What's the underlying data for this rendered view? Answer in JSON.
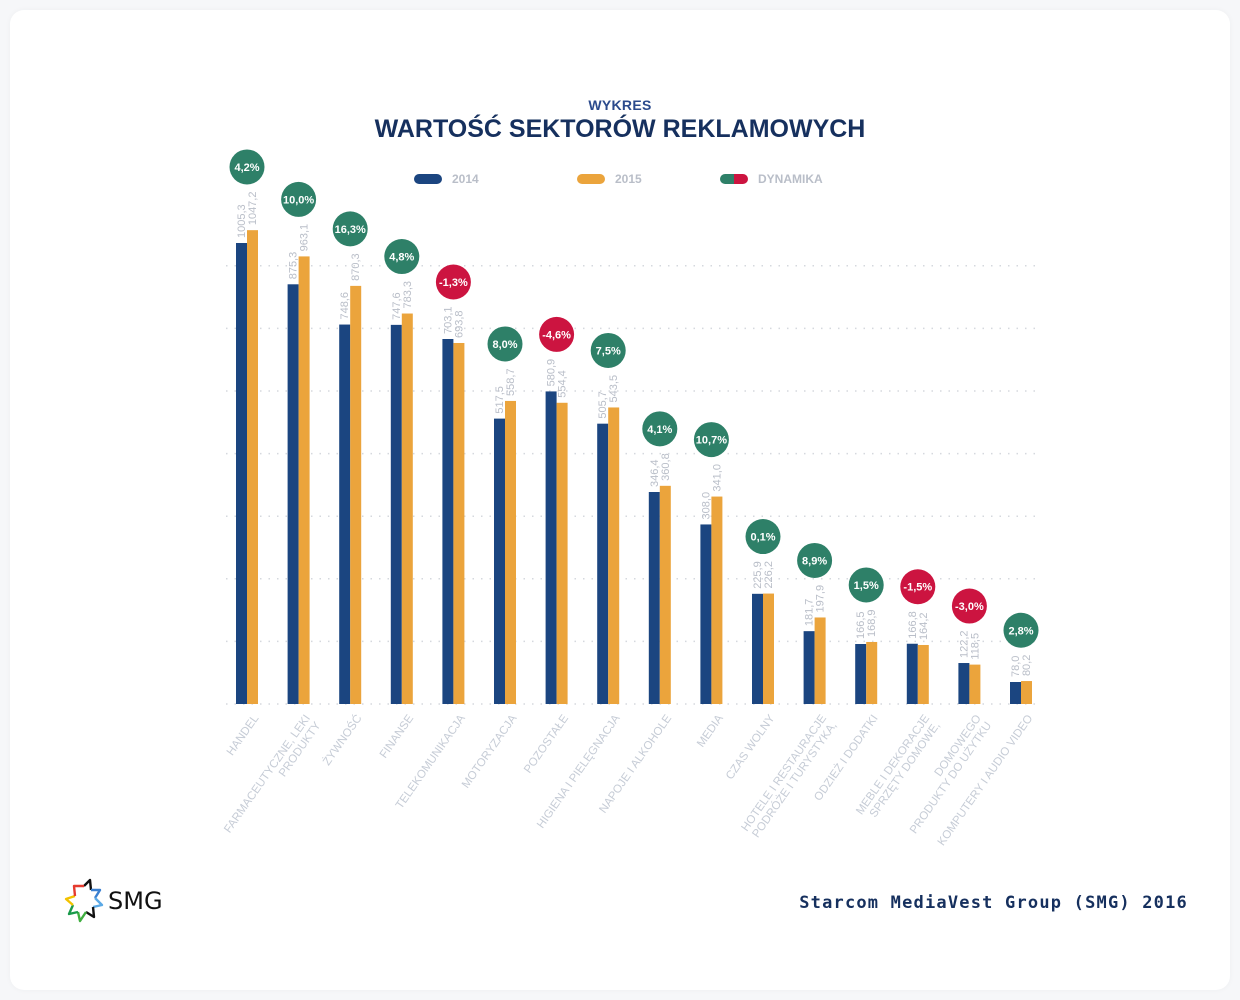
{
  "header": {
    "subtitle": "WYKRES",
    "title": "WARTOŚĆ SEKTORÓW REKLAMOWYCH"
  },
  "legend": [
    {
      "label": "2014",
      "color": "#1b4580"
    },
    {
      "label": "2015",
      "color": "#eba43c"
    },
    {
      "label": "DYNAMIKA",
      "colors": [
        "#2e8068",
        "#cc1440"
      ]
    }
  ],
  "footer": {
    "source": "Starcom MediaVest Group (SMG) 2016",
    "logo_text": "SMG"
  },
  "colors": {
    "series2014": "#1b4580",
    "series2015": "#eba43c",
    "positive": "#2e8068",
    "negative": "#cc1440",
    "label": "#b9bec8"
  },
  "chart_data": {
    "type": "bar",
    "title": "WARTOŚĆ SEKTORÓW REKLAMOWYCH",
    "subtitle": "WYKRES",
    "xlabel": "",
    "ylabel": "",
    "grid": true,
    "legend_position": "top",
    "categories": [
      "HANDEL",
      "PRODUKTY FARMACEUTYCZNE, LEKI",
      "ŻYWNOŚĆ",
      "FINANSE",
      "TELEKOMUNIKACJA",
      "MOTORYZACJA",
      "POZOSTAŁE",
      "HIGIENA I PIELĘGNACJA",
      "NAPOJE I ALKOHOLE",
      "MEDIA",
      "CZAS WOLNY",
      "PODRÓŻE I TURYSTYKA, HOTELE I RESTAURACJE",
      "ODZIEŻ I DODATKI",
      "SPRZĘTY DOMOWE, MEBLE I DEKORACJE",
      "PRODUKTY DO UŻYTKU DOMOWEGO",
      "KOMPUTERY I AUDIO VIDEO"
    ],
    "category_lines": [
      [
        "HANDEL"
      ],
      [
        "PRODUKTY",
        "FARMACEUTYCZNE, LEKI"
      ],
      [
        "ŻYWNOŚĆ"
      ],
      [
        "FINANSE"
      ],
      [
        "TELEKOMUNIKACJA"
      ],
      [
        "MOTORYZACJA"
      ],
      [
        "POZOSTAŁE"
      ],
      [
        "HIGIENA I PIELĘGNACJA"
      ],
      [
        "NAPOJE I ALKOHOLE"
      ],
      [
        "MEDIA"
      ],
      [
        "CZAS WOLNY"
      ],
      [
        "PODRÓŻE I TURYSTYKA,",
        "HOTELE I RESTAURACJE"
      ],
      [
        "ODZIEŻ I DODATKI"
      ],
      [
        "SPRZĘTY DOMOWE,",
        "MEBLE I DEKORACJE"
      ],
      [
        "PRODUKTY DO UŻYTKU",
        "DOMOWEGO"
      ],
      [
        "KOMPUTERY I AUDIO VIDEO"
      ]
    ],
    "series": [
      {
        "name": "2014",
        "values": [
          1005.3,
          875.3,
          748.6,
          747.6,
          703.1,
          517.5,
          580.9,
          505.7,
          346.4,
          308.0,
          225.9,
          181.7,
          166.5,
          166.8,
          122.2,
          78.0
        ],
        "labels": [
          "1005,3",
          "875,3",
          "748,6",
          "747,6",
          "703,1",
          "517,5",
          "580,9",
          "505,7",
          "346,4",
          "308,0",
          "225,9",
          "181,7",
          "166,5",
          "166,8",
          "122,2",
          "78,0"
        ]
      },
      {
        "name": "2015",
        "values": [
          1047.2,
          963.1,
          870.3,
          783.3,
          693.8,
          558.7,
          554.4,
          543.5,
          360.8,
          341.0,
          226.2,
          197.9,
          168.9,
          164.2,
          118.5,
          80.2
        ],
        "labels": [
          "1047,2",
          "963,1",
          "870,3",
          "783,3",
          "693,8",
          "558,7",
          "554,4",
          "543,5",
          "360,8",
          "341,0",
          "226,2",
          "197,9",
          "168,9",
          "164,2",
          "118,5",
          "80,2"
        ]
      }
    ],
    "dynamics": {
      "name": "DYNAMIKA",
      "values": [
        4.2,
        10.0,
        16.3,
        4.8,
        -1.3,
        8.0,
        -4.6,
        7.5,
        4.1,
        10.7,
        0.1,
        8.9,
        1.5,
        -1.5,
        -3.0,
        2.8
      ],
      "labels": [
        "4,2%",
        "10,0%",
        "16,3%",
        "4,8%",
        "-1,3%",
        "8,0%",
        "-4,6%",
        "7,5%",
        "4,1%",
        "10,7%",
        "0,1%",
        "8,9%",
        "1,5%",
        "-1,5%",
        "-3,0%",
        "2,8%"
      ]
    },
    "ylim": [
      0,
      1100
    ]
  }
}
